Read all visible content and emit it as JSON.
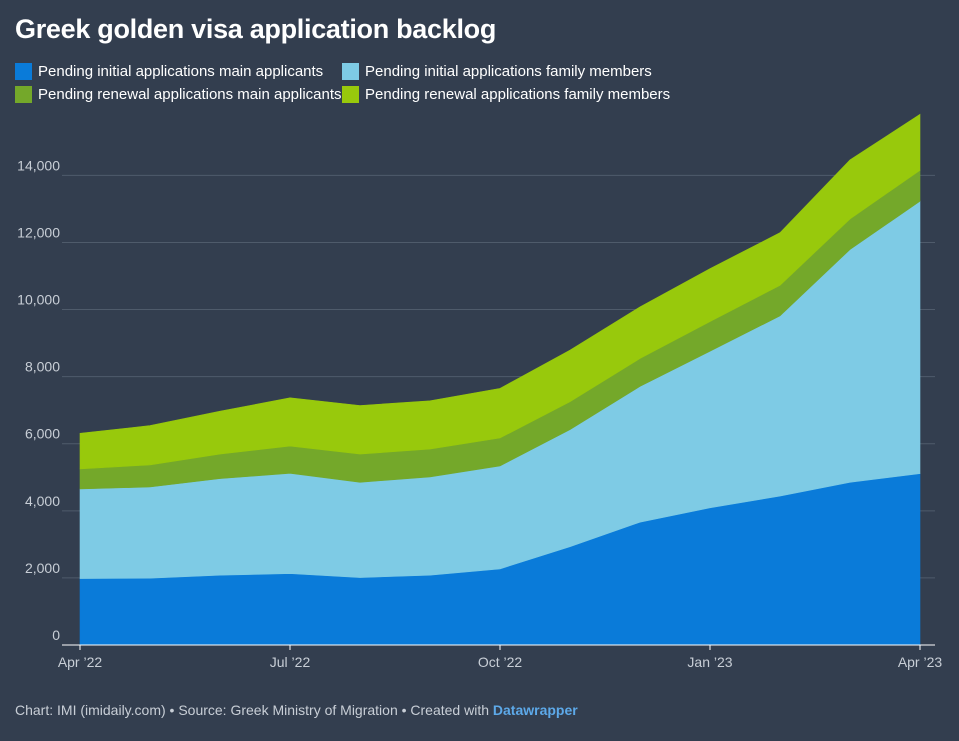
{
  "title": "Greek golden visa application backlog",
  "colors": {
    "initial_main": "#0a7bd9",
    "initial_family": "#7ecbe5",
    "renewal_main": "#74a82a",
    "renewal_family": "#98c90c",
    "background": "#333e4f",
    "grid": "#4f5b6b"
  },
  "footer": {
    "text": "Chart: IMI (imidaily.com) • Source: Greek Ministry of Migration • Created with ",
    "link": "Datawrapper"
  },
  "chart_data": {
    "type": "area",
    "stacked": true,
    "x": [
      "Apr 2022",
      "May 2022",
      "Jun 2022",
      "Jul 2022",
      "Aug 2022",
      "Sep 2022",
      "Oct 2022",
      "Nov 2022",
      "Dec 2022",
      "Jan 2023",
      "Feb 2023",
      "Mar 2023",
      "Apr 2023"
    ],
    "x_tick_labels": [
      "Apr ’22",
      "Jul ’22",
      "Oct ’22",
      "Jan ’23",
      "Apr ’23"
    ],
    "x_tick_indices": [
      0,
      3,
      6,
      9,
      12
    ],
    "ylim": [
      0,
      15800
    ],
    "y_ticks": [
      0,
      2000,
      4000,
      6000,
      8000,
      10000,
      12000,
      14000
    ],
    "y_tick_labels": [
      "0",
      "2,000",
      "4,000",
      "6,000",
      "8,000",
      "10,000",
      "12,000",
      "14,000"
    ],
    "grid": true,
    "legend_position": "top",
    "series": [
      {
        "name": "Pending initial applications main applicants",
        "color": "#0a7bd9",
        "values": [
          1980,
          1990,
          2080,
          2130,
          2010,
          2080,
          2270,
          2930,
          3660,
          4090,
          4440,
          4850,
          5110
        ]
      },
      {
        "name": "Pending initial applications family members",
        "color": "#7ecbe5",
        "values": [
          2670,
          2720,
          2880,
          2990,
          2840,
          2930,
          3070,
          3490,
          4050,
          4670,
          5370,
          6940,
          8120
        ]
      },
      {
        "name": "Pending renewal applications main applicants",
        "color": "#74a82a",
        "values": [
          600,
          660,
          730,
          810,
          840,
          830,
          830,
          830,
          830,
          880,
          910,
          910,
          920
        ]
      },
      {
        "name": "Pending renewal applications family members",
        "color": "#98c90c",
        "values": [
          1060,
          1170,
          1280,
          1440,
          1450,
          1440,
          1480,
          1540,
          1540,
          1580,
          1570,
          1760,
          1670
        ]
      }
    ]
  }
}
